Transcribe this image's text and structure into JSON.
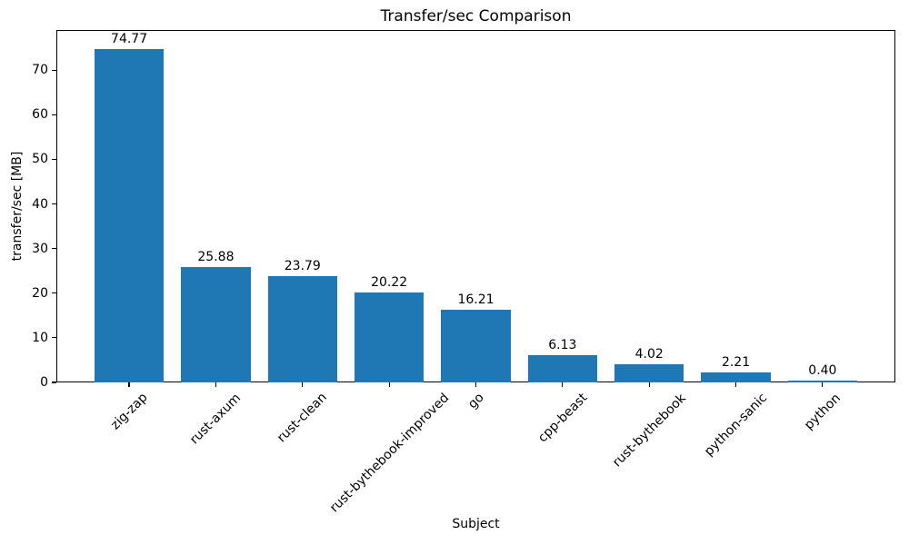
{
  "chart_data": {
    "type": "bar",
    "title": "Transfer/sec Comparison",
    "xlabel": "Subject",
    "ylabel": "transfer/sec [MB]",
    "categories": [
      "zig-zap",
      "rust-axum",
      "rust-clean",
      "rust-bythebook-improved",
      "go",
      "cpp-beast",
      "rust-bythebook",
      "python-sanic",
      "python"
    ],
    "values": [
      74.77,
      25.88,
      23.79,
      20.22,
      16.21,
      6.13,
      4.02,
      2.21,
      0.4
    ],
    "value_labels": [
      "74.77",
      "25.88",
      "23.79",
      "20.22",
      "16.21",
      "6.13",
      "4.02",
      "2.21",
      "0.40"
    ],
    "y_ticks": [
      0,
      10,
      20,
      30,
      40,
      50,
      60,
      70
    ],
    "ylim": [
      0,
      79
    ],
    "bar_color": "#1f77b4",
    "axis_color": "#000000",
    "text_color": "#000000",
    "background_color": "#ffffff",
    "grid": false,
    "legend": null,
    "bar_width_fraction": 0.8,
    "x_tick_rotation_deg": 45
  }
}
